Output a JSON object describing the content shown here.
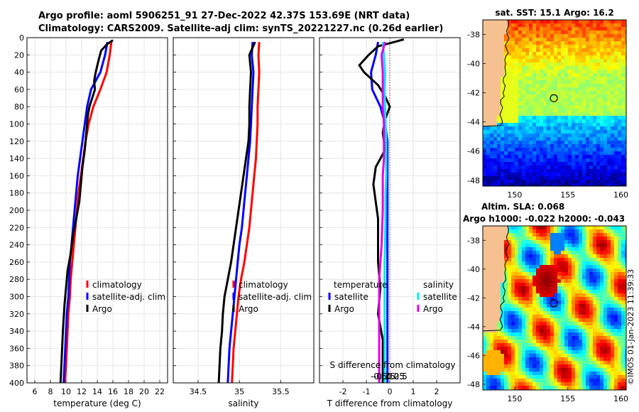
{
  "titles": {
    "line1": "Argo profile: aoml 5906251_91 27-Dec-2022 42.37S 153.69E (NRT data)",
    "line2": "Climatology: CARS2009. Satellite-adj clim: synTS_20221227.nc (0.26d earlier)"
  },
  "colors": {
    "climatology": "#ff0000",
    "satellite": "#0000ff",
    "argo": "#000000",
    "sal_satellite": "#00e6ff",
    "sal_argo": "#e600e6"
  },
  "chart_data": [
    {
      "type": "line",
      "id": "temperature",
      "xlabel": "temperature (deg C)",
      "xlim": [
        5,
        23
      ],
      "xticks": [
        6,
        8,
        10,
        12,
        14,
        16,
        18,
        20,
        22
      ],
      "xticklabels": [
        "6",
        "8",
        "10",
        "12",
        "14",
        "16",
        "18",
        "20",
        "22"
      ],
      "ylim": [
        0,
        400
      ],
      "yticks": [
        0,
        20,
        40,
        60,
        80,
        100,
        120,
        140,
        160,
        180,
        200,
        220,
        240,
        260,
        280,
        300,
        320,
        340,
        360,
        380,
        400
      ],
      "legend": [
        "climatology",
        "satellite-adj. clim",
        "Argo"
      ],
      "series": [
        {
          "name": "climatology",
          "color": "#ff0000",
          "x": [
            15.8,
            15.6,
            15.2,
            14.4,
            13.5,
            12.9,
            12.5,
            12.2,
            11.9,
            11.6,
            11.4,
            11.2,
            11.0,
            10.8,
            10.6,
            10.5,
            10.3,
            10.2,
            10.1,
            10.0,
            9.9,
            9.8
          ],
          "y": [
            5,
            20,
            40,
            60,
            80,
            100,
            120,
            140,
            160,
            180,
            200,
            220,
            240,
            260,
            280,
            300,
            320,
            340,
            360,
            380,
            395,
            400
          ]
        },
        {
          "name": "satellite-adj. clim",
          "color": "#0000ff",
          "x": [
            15.3,
            15.0,
            14.4,
            13.2,
            12.7,
            12.4,
            12.1,
            11.8,
            11.5,
            11.3,
            11.1,
            10.9,
            10.7,
            10.5,
            10.4,
            10.3,
            10.1,
            10.0,
            9.9,
            9.8,
            9.7
          ],
          "y": [
            5,
            20,
            40,
            60,
            80,
            100,
            120,
            140,
            160,
            180,
            200,
            220,
            240,
            260,
            280,
            300,
            320,
            340,
            360,
            380,
            400
          ]
        },
        {
          "name": "Argo",
          "color": "#000000",
          "x": [
            16.0,
            15.2,
            14.5,
            14.2,
            13.8,
            13.6,
            13.7,
            13.0,
            12.8,
            12.6,
            12.4,
            12.1,
            11.9,
            11.7,
            11.3,
            10.9,
            10.6,
            10.2,
            10.0,
            9.8,
            9.6,
            9.5,
            9.4,
            9.3
          ],
          "y": [
            3,
            8,
            15,
            25,
            40,
            50,
            60,
            80,
            90,
            110,
            130,
            150,
            170,
            190,
            210,
            230,
            250,
            270,
            290,
            310,
            340,
            360,
            380,
            400
          ]
        }
      ]
    },
    {
      "type": "line",
      "id": "salinity",
      "xlabel": "salinity",
      "xlim": [
        34.2,
        35.9
      ],
      "xticks": [
        34.5,
        35,
        35.5
      ],
      "xticklabels": [
        "34.5",
        "35",
        "35.5"
      ],
      "ylim": [
        0,
        400
      ],
      "legend": [
        "climatology",
        "satellite-adj. clim",
        "Argo"
      ],
      "series": [
        {
          "name": "climatology",
          "color": "#ff0000",
          "x": [
            35.24,
            35.23,
            35.24,
            35.23,
            35.22,
            35.22,
            35.21,
            35.2,
            35.18,
            35.16,
            35.14,
            35.12,
            35.09,
            35.06,
            35.02,
            34.99,
            34.97,
            34.95,
            34.93,
            34.92,
            34.91
          ],
          "y": [
            5,
            20,
            40,
            60,
            80,
            100,
            120,
            140,
            160,
            180,
            200,
            220,
            240,
            260,
            280,
            300,
            320,
            340,
            360,
            380,
            400
          ]
        },
        {
          "name": "satellite-adj. clim",
          "color": "#0000ff",
          "x": [
            35.16,
            35.15,
            35.17,
            35.16,
            35.15,
            35.14,
            35.13,
            35.11,
            35.09,
            35.07,
            35.05,
            35.03,
            35.0,
            34.98,
            34.96,
            34.94,
            34.92,
            34.9,
            34.88,
            34.87,
            34.86
          ],
          "y": [
            5,
            20,
            40,
            60,
            80,
            100,
            120,
            140,
            160,
            180,
            200,
            220,
            240,
            260,
            280,
            300,
            320,
            340,
            360,
            380,
            400
          ]
        },
        {
          "name": "Argo",
          "color": "#000000",
          "x": [
            35.19,
            35.12,
            35.14,
            35.13,
            35.12,
            35.12,
            35.11,
            35.08,
            35.05,
            35.02,
            34.99,
            34.96,
            34.93,
            34.9,
            34.86,
            34.82,
            34.8,
            34.79,
            34.77,
            34.76,
            34.75
          ],
          "y": [
            5,
            20,
            40,
            60,
            80,
            100,
            120,
            140,
            160,
            180,
            200,
            220,
            240,
            260,
            280,
            300,
            320,
            340,
            360,
            380,
            400
          ]
        }
      ]
    },
    {
      "type": "line",
      "id": "difference",
      "xlabel": "T difference from climatology",
      "xlim": [
        -3,
        3
      ],
      "xticks": [
        -2,
        -1,
        0,
        1,
        2
      ],
      "xticklabels": [
        "-2",
        "-1",
        "0",
        "1",
        "2"
      ],
      "top_axis_label": "S difference from climatology",
      "top_ticks": [
        -0.5,
        -0.25,
        0,
        0.25,
        0.5
      ],
      "top_ticklabels": [
        "-0.5",
        "-0.25",
        "0",
        "0.25",
        "0.5"
      ],
      "ylim": [
        0,
        400
      ],
      "legend_left_title": "temperature",
      "legend_left": [
        "satellite",
        "Argo"
      ],
      "legend_right_title": "salinity",
      "legend_right": [
        "satellite",
        "Argo"
      ],
      "series": [
        {
          "name": "T satellite",
          "color": "#0000ff",
          "x": [
            -0.5,
            -0.6,
            -0.8,
            -0.75,
            -0.4,
            -0.2,
            -0.1,
            -0.1,
            -0.1,
            -0.1,
            -0.1,
            -0.1,
            -0.1,
            -0.1,
            -0.1,
            -0.1,
            -0.1,
            -0.1,
            -0.1,
            -0.1
          ],
          "y": [
            5,
            20,
            40,
            60,
            80,
            100,
            120,
            140,
            160,
            180,
            200,
            240,
            260,
            280,
            300,
            320,
            340,
            360,
            380,
            400
          ]
        },
        {
          "name": "T Argo",
          "color": "#000000",
          "x": [
            0.6,
            0.2,
            -0.5,
            -0.9,
            -1.3,
            -1.1,
            -0.5,
            -0.2,
            0.0,
            -0.2,
            -0.3,
            -0.2,
            -0.6,
            -0.7,
            -0.6,
            -0.5,
            -0.5,
            -0.5,
            -0.4,
            -0.5,
            -0.3,
            -0.3,
            -0.3
          ],
          "y": [
            2,
            5,
            10,
            20,
            32,
            40,
            55,
            68,
            80,
            95,
            110,
            130,
            150,
            170,
            190,
            210,
            230,
            260,
            290,
            320,
            350,
            380,
            400
          ]
        },
        {
          "name": "S satellite",
          "color": "#00e6ff",
          "x": [
            -0.3,
            -0.25,
            -0.2,
            -0.22,
            -0.2,
            -0.18,
            -0.15,
            -0.15,
            -0.15,
            -0.18,
            -0.18,
            -0.2,
            -0.22,
            -0.22,
            -0.22,
            -0.22,
            -0.22,
            -0.22,
            -0.22,
            -0.22
          ],
          "y": [
            5,
            20,
            40,
            60,
            80,
            100,
            120,
            140,
            160,
            180,
            200,
            240,
            260,
            280,
            300,
            320,
            340,
            360,
            380,
            400
          ]
        },
        {
          "name": "S Argo",
          "color": "#e600e6",
          "x": [
            -0.2,
            -0.35,
            -0.3,
            -0.3,
            -0.3,
            -0.25,
            -0.25,
            -0.25,
            -0.3,
            -0.3,
            -0.3,
            -0.35,
            -0.4,
            -0.45,
            -0.45,
            -0.45,
            -0.45,
            -0.45,
            -0.45,
            -0.45
          ],
          "y": [
            5,
            20,
            40,
            60,
            80,
            100,
            120,
            140,
            160,
            180,
            200,
            240,
            260,
            280,
            300,
            320,
            340,
            360,
            380,
            400
          ]
        }
      ]
    },
    {
      "type": "heatmap",
      "id": "sst_map",
      "title": "sat. SST: 15.1 Argo: 16.2",
      "xlim": [
        147,
        160.5
      ],
      "ylim": [
        -48.4,
        -37
      ],
      "xticks": [
        150,
        155,
        160
      ],
      "xticklabels": [
        "150",
        "155",
        "160"
      ],
      "yticks": [
        -38,
        -40,
        -42,
        -44,
        -46,
        -48
      ],
      "yticklabels": [
        "-38",
        "-40",
        "-42",
        "-44",
        "-46",
        "-48"
      ],
      "marker": {
        "lon": 153.69,
        "lat": -42.37
      }
    },
    {
      "type": "heatmap",
      "id": "sla_map",
      "title1": "Altim. SLA: 0.068",
      "title2": "Argo h1000: -0.022 h2000: -0.043",
      "xlim": [
        147,
        160.5
      ],
      "ylim": [
        -48.4,
        -37
      ],
      "xticks": [
        150,
        155,
        160
      ],
      "xticklabels": [
        "150",
        "155",
        "160"
      ],
      "yticks": [
        -38,
        -40,
        -42,
        -44,
        -46,
        -48
      ],
      "yticklabels": [
        "-38",
        "-40",
        "-42",
        "-44",
        "-46",
        "-48"
      ],
      "marker": {
        "lon": 153.69,
        "lat": -42.37
      }
    }
  ],
  "stamp": "©IMOS 01-Jan-2023 11:39:33"
}
